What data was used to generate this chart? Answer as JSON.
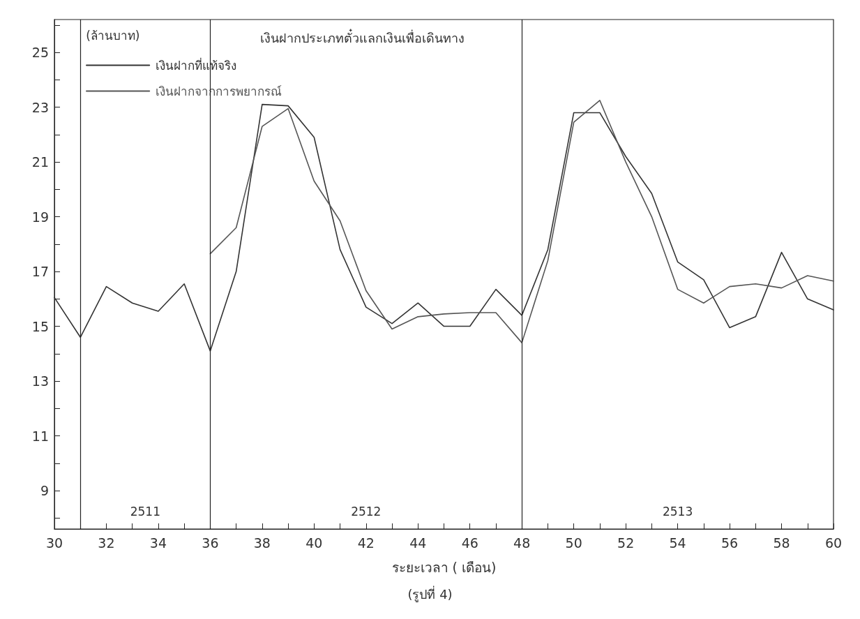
{
  "chart_data": {
    "type": "line",
    "title": "เงินฝากประเภทตั๋วแลกเงินเพื่อเดินทาง",
    "ylabel": "(ล้านบาท)",
    "xlabel": "ระยะเวลา ( เดือน)",
    "annotations": [
      "(รูปที่ 4)",
      "2511",
      "2512",
      "2513"
    ],
    "x": [
      30,
      31,
      32,
      33,
      34,
      35,
      36,
      37,
      38,
      39,
      40,
      41,
      42,
      43,
      44,
      45,
      46,
      47,
      48,
      49,
      50,
      51,
      52,
      53,
      54,
      55,
      56,
      57,
      58,
      59,
      60
    ],
    "series": [
      {
        "name": "เงินฝากที่แท้จริง",
        "color": "#333333",
        "values": [
          16.05,
          14.6,
          16.45,
          15.85,
          15.55,
          16.55,
          14.1,
          17.0,
          23.1,
          23.05,
          21.9,
          17.8,
          15.7,
          15.1,
          15.85,
          15.0,
          15.0,
          16.35,
          15.4,
          17.8,
          22.8,
          22.8,
          21.2,
          19.85,
          17.35,
          16.7,
          14.95,
          15.35,
          17.7,
          16.0,
          15.6
        ]
      },
      {
        "name": "เงินฝากจากการพยากรณ์",
        "color": "#555555",
        "x": [
          36,
          37,
          38,
          39,
          40,
          41,
          42,
          43,
          44,
          45,
          46,
          47,
          48,
          49,
          50,
          51,
          52,
          53,
          54,
          55,
          56,
          57,
          58,
          59,
          60
        ],
        "values": [
          17.65,
          18.6,
          22.3,
          22.95,
          20.3,
          18.85,
          16.3,
          14.9,
          15.35,
          15.45,
          15.5,
          15.5,
          14.4,
          17.4,
          22.45,
          23.25,
          21.0,
          19.0,
          16.35,
          15.85,
          16.45,
          16.55,
          16.4,
          16.85,
          16.65
        ]
      }
    ],
    "ref_lines": [
      {
        "axis": "x",
        "value": 31
      },
      {
        "axis": "x",
        "value": 36
      },
      {
        "axis": "x",
        "value": 48
      }
    ],
    "xlim": [
      30,
      60
    ],
    "xticks": [
      30,
      {
        "value": 31,
        "label": null
      },
      32,
      {
        "value": 33,
        "label": null
      },
      34,
      {
        "value": 35,
        "label": null
      },
      36,
      {
        "value": 37,
        "label": null
      },
      38,
      {
        "value": 39,
        "label": null
      },
      40,
      {
        "value": 41,
        "label": null
      },
      42,
      {
        "value": 43,
        "label": null
      },
      44,
      {
        "value": 45,
        "label": null
      },
      46,
      {
        "value": 47,
        "label": null
      },
      48,
      {
        "value": 49,
        "label": null
      },
      50,
      {
        "value": 51,
        "label": null
      },
      52,
      {
        "value": 53,
        "label": null
      },
      54,
      {
        "value": 55,
        "label": null
      },
      56,
      {
        "value": 57,
        "label": null
      },
      58,
      {
        "value": 59,
        "label": null
      },
      60
    ],
    "ylim": [
      7.6,
      26.2
    ],
    "yticks": [
      {
        "value": 8,
        "label": null
      },
      9,
      {
        "value": 10,
        "label": null
      },
      11,
      {
        "value": 12,
        "label": null
      },
      13,
      {
        "value": 14,
        "label": null
      },
      15,
      {
        "value": 16,
        "label": null
      },
      17,
      {
        "value": 18,
        "label": null
      },
      19,
      {
        "value": 20,
        "label": null
      },
      21,
      {
        "value": 22,
        "label": null
      },
      23,
      {
        "value": 24,
        "label": null
      },
      25,
      {
        "value": 26,
        "label": null
      }
    ],
    "grid": false,
    "legend": "top left",
    "marker": "none",
    "line_style": "solid"
  }
}
